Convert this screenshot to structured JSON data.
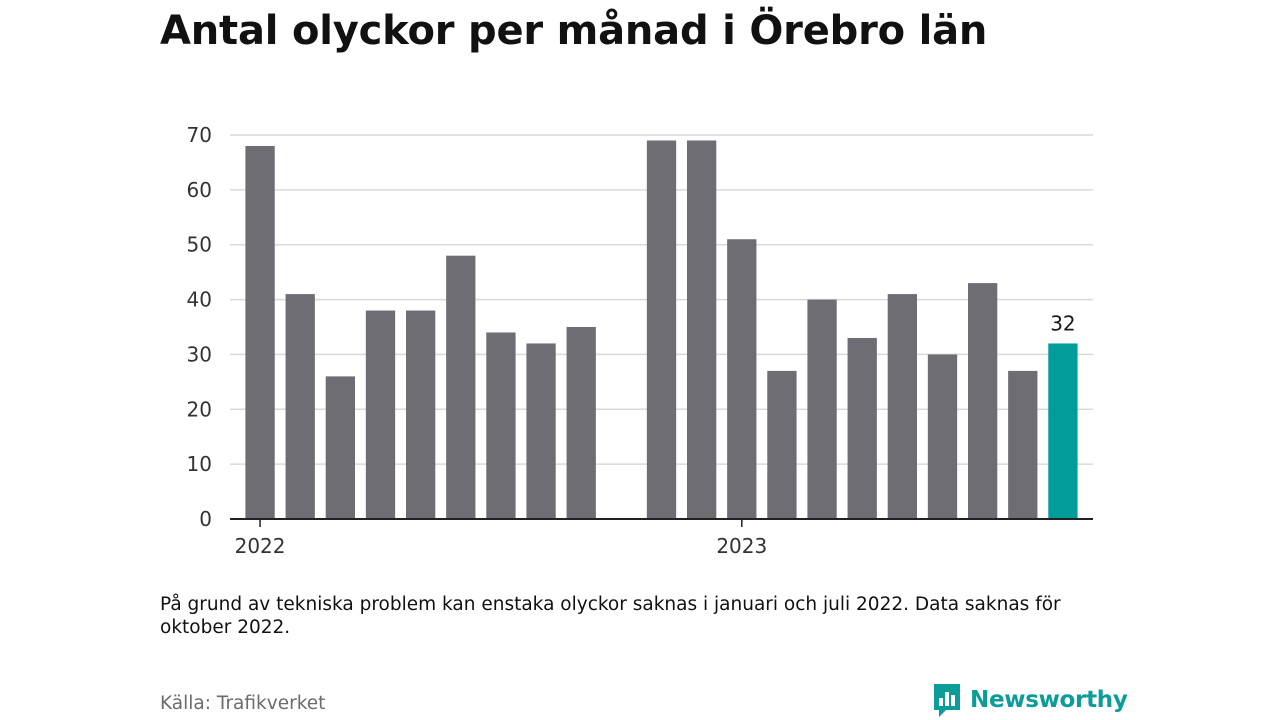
{
  "title": "Antal olyckor per månad i Örebro län",
  "note": "På grund av tekniska problem kan enstaka olyckor saknas i januari och juli 2022. Data saknas för oktober 2022.",
  "source": "Källa: Trafikverket",
  "brand": {
    "name": "Newsworthy",
    "icon": "newsworthy-logo-icon"
  },
  "colors": {
    "bar": "#6e6d73",
    "highlight": "#009d9a",
    "grid": "#d9d9d9",
    "axis": "#222222",
    "brand": "#0c9c9a"
  },
  "chart_data": {
    "type": "bar",
    "xlabel": "",
    "ylabel": "",
    "ylim": [
      0,
      70
    ],
    "yticks": [
      0,
      10,
      20,
      30,
      40,
      50,
      60,
      70
    ],
    "grid": true,
    "x_tick_labels": [
      "2022",
      "2023"
    ],
    "data": [
      {
        "month": "2022-01",
        "value": 68
      },
      {
        "month": "2022-02",
        "value": 41
      },
      {
        "month": "2022-03",
        "value": 26
      },
      {
        "month": "2022-04",
        "value": 38
      },
      {
        "month": "2022-05",
        "value": 38
      },
      {
        "month": "2022-06",
        "value": 48
      },
      {
        "month": "2022-07",
        "value": 34
      },
      {
        "month": "2022-08",
        "value": 32
      },
      {
        "month": "2022-09",
        "value": 35
      },
      {
        "month": "2022-10",
        "value": null
      },
      {
        "month": "2022-11",
        "value": 69
      },
      {
        "month": "2022-12",
        "value": 69
      },
      {
        "month": "2023-01",
        "value": 51
      },
      {
        "month": "2023-02",
        "value": 27
      },
      {
        "month": "2023-03",
        "value": 40
      },
      {
        "month": "2023-04",
        "value": 33
      },
      {
        "month": "2023-05",
        "value": 41
      },
      {
        "month": "2023-06",
        "value": 30
      },
      {
        "month": "2023-07",
        "value": 43
      },
      {
        "month": "2023-08",
        "value": 27
      },
      {
        "month": "2023-09",
        "value": 32
      }
    ],
    "highlight_month": "2023-09",
    "highlight_label": "32"
  }
}
